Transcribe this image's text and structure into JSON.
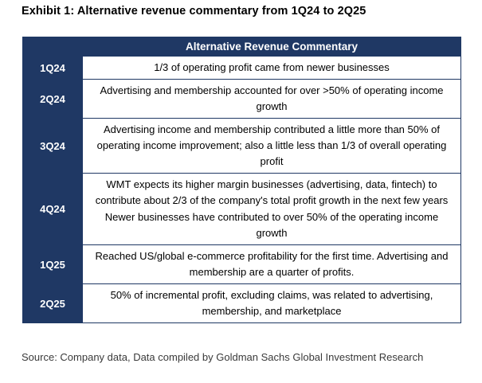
{
  "exhibit": {
    "title": "Exhibit 1: Alternative revenue commentary from 1Q24 to 2Q25",
    "source": "Source: Company data, Data compiled by Goldman Sachs Global Investment Research"
  },
  "table": {
    "header": "Alternative Revenue Commentary",
    "rows": [
      {
        "quarter": "1Q24",
        "paragraphs": [
          "1/3 of operating profit came from newer businesses"
        ]
      },
      {
        "quarter": "2Q24",
        "paragraphs": [
          "Advertising and membership accounted for over >50% of operating income growth"
        ]
      },
      {
        "quarter": "3Q24",
        "paragraphs": [
          "Advertising income and membership contributed a little more than 50% of operating income improvement; also a little less than 1/3 of overall operating profit"
        ]
      },
      {
        "quarter": "4Q24",
        "paragraphs": [
          "WMT expects its higher margin businesses (advertising, data, fintech) to contribute about 2/3 of the company's total profit growth in the next few years",
          "Newer businesses have contributed to over 50% of the operating income growth"
        ]
      },
      {
        "quarter": "1Q25",
        "paragraphs": [
          "Reached US/global e-commerce profitability for the first time. Advertising and membership are a quarter of profits."
        ]
      },
      {
        "quarter": "2Q25",
        "paragraphs": [
          "50% of incremental profit, excluding claims, was related to advertising, membership, and marketplace"
        ]
      }
    ]
  },
  "colors": {
    "navy": "#1F3864",
    "border": "#1F3864",
    "body_text": "#000000",
    "source_text": "#3a3a3a"
  }
}
